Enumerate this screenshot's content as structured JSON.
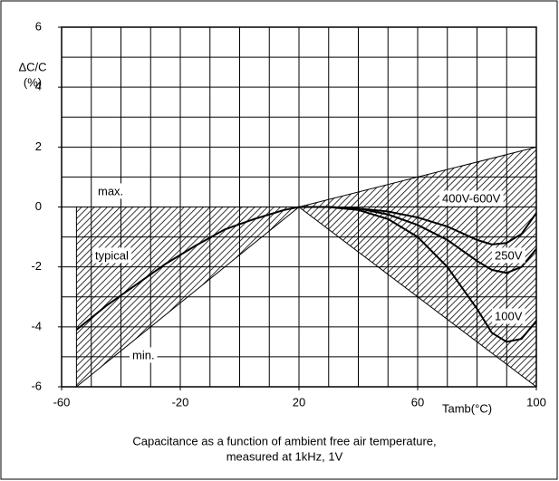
{
  "chart_data": {
    "type": "line",
    "title": [
      "Capacitance as a function of ambient free air temperature,",
      "measured at 1kHz, 1V"
    ],
    "ylabel": [
      "ΔC/C",
      "(%)"
    ],
    "xlabel": "Tamb(°C)",
    "xlim": [
      -60,
      100
    ],
    "ylim": [
      -6,
      6
    ],
    "xticks": [
      -60,
      -20,
      20,
      60,
      100
    ],
    "yticks": [
      6,
      4,
      2,
      0,
      -2,
      -4,
      -6
    ],
    "grid_step_x": 10,
    "grid_step_y": 1,
    "hatch_bands": [
      {
        "x": [
          -55,
          20
        ],
        "upper": [
          0,
          0
        ],
        "lower": [
          -6,
          0
        ]
      },
      {
        "x": [
          20,
          100
        ],
        "upper": [
          0,
          2
        ],
        "lower": [
          0,
          -6
        ]
      }
    ],
    "annotations": [
      "max.",
      "min."
    ],
    "series": [
      {
        "name": "typical",
        "color": "#000000",
        "x": [
          -55,
          -45,
          -35,
          -25,
          -15,
          -5,
          5,
          15,
          20
        ],
        "values": [
          -4.1,
          -3.3,
          -2.6,
          -1.9,
          -1.3,
          -0.75,
          -0.4,
          -0.1,
          0
        ]
      },
      {
        "name": "400V-600V",
        "color": "#000000",
        "x": [
          20,
          30,
          40,
          50,
          60,
          70,
          80,
          85,
          90,
          95,
          100
        ],
        "values": [
          0,
          0,
          -0.05,
          -0.15,
          -0.35,
          -0.65,
          -1.1,
          -1.25,
          -1.2,
          -0.9,
          -0.2
        ]
      },
      {
        "name": "250V",
        "color": "#000000",
        "x": [
          20,
          30,
          40,
          50,
          60,
          70,
          80,
          85,
          90,
          95,
          100
        ],
        "values": [
          0,
          0,
          -0.05,
          -0.25,
          -0.6,
          -1.1,
          -1.8,
          -2.1,
          -2.2,
          -2.0,
          -1.4
        ]
      },
      {
        "name": "100V",
        "color": "#000000",
        "x": [
          20,
          30,
          40,
          50,
          60,
          70,
          80,
          85,
          90,
          95,
          100
        ],
        "values": [
          0,
          0,
          -0.1,
          -0.4,
          -1.0,
          -2.0,
          -3.4,
          -4.2,
          -4.5,
          -4.4,
          -3.8
        ]
      }
    ]
  }
}
